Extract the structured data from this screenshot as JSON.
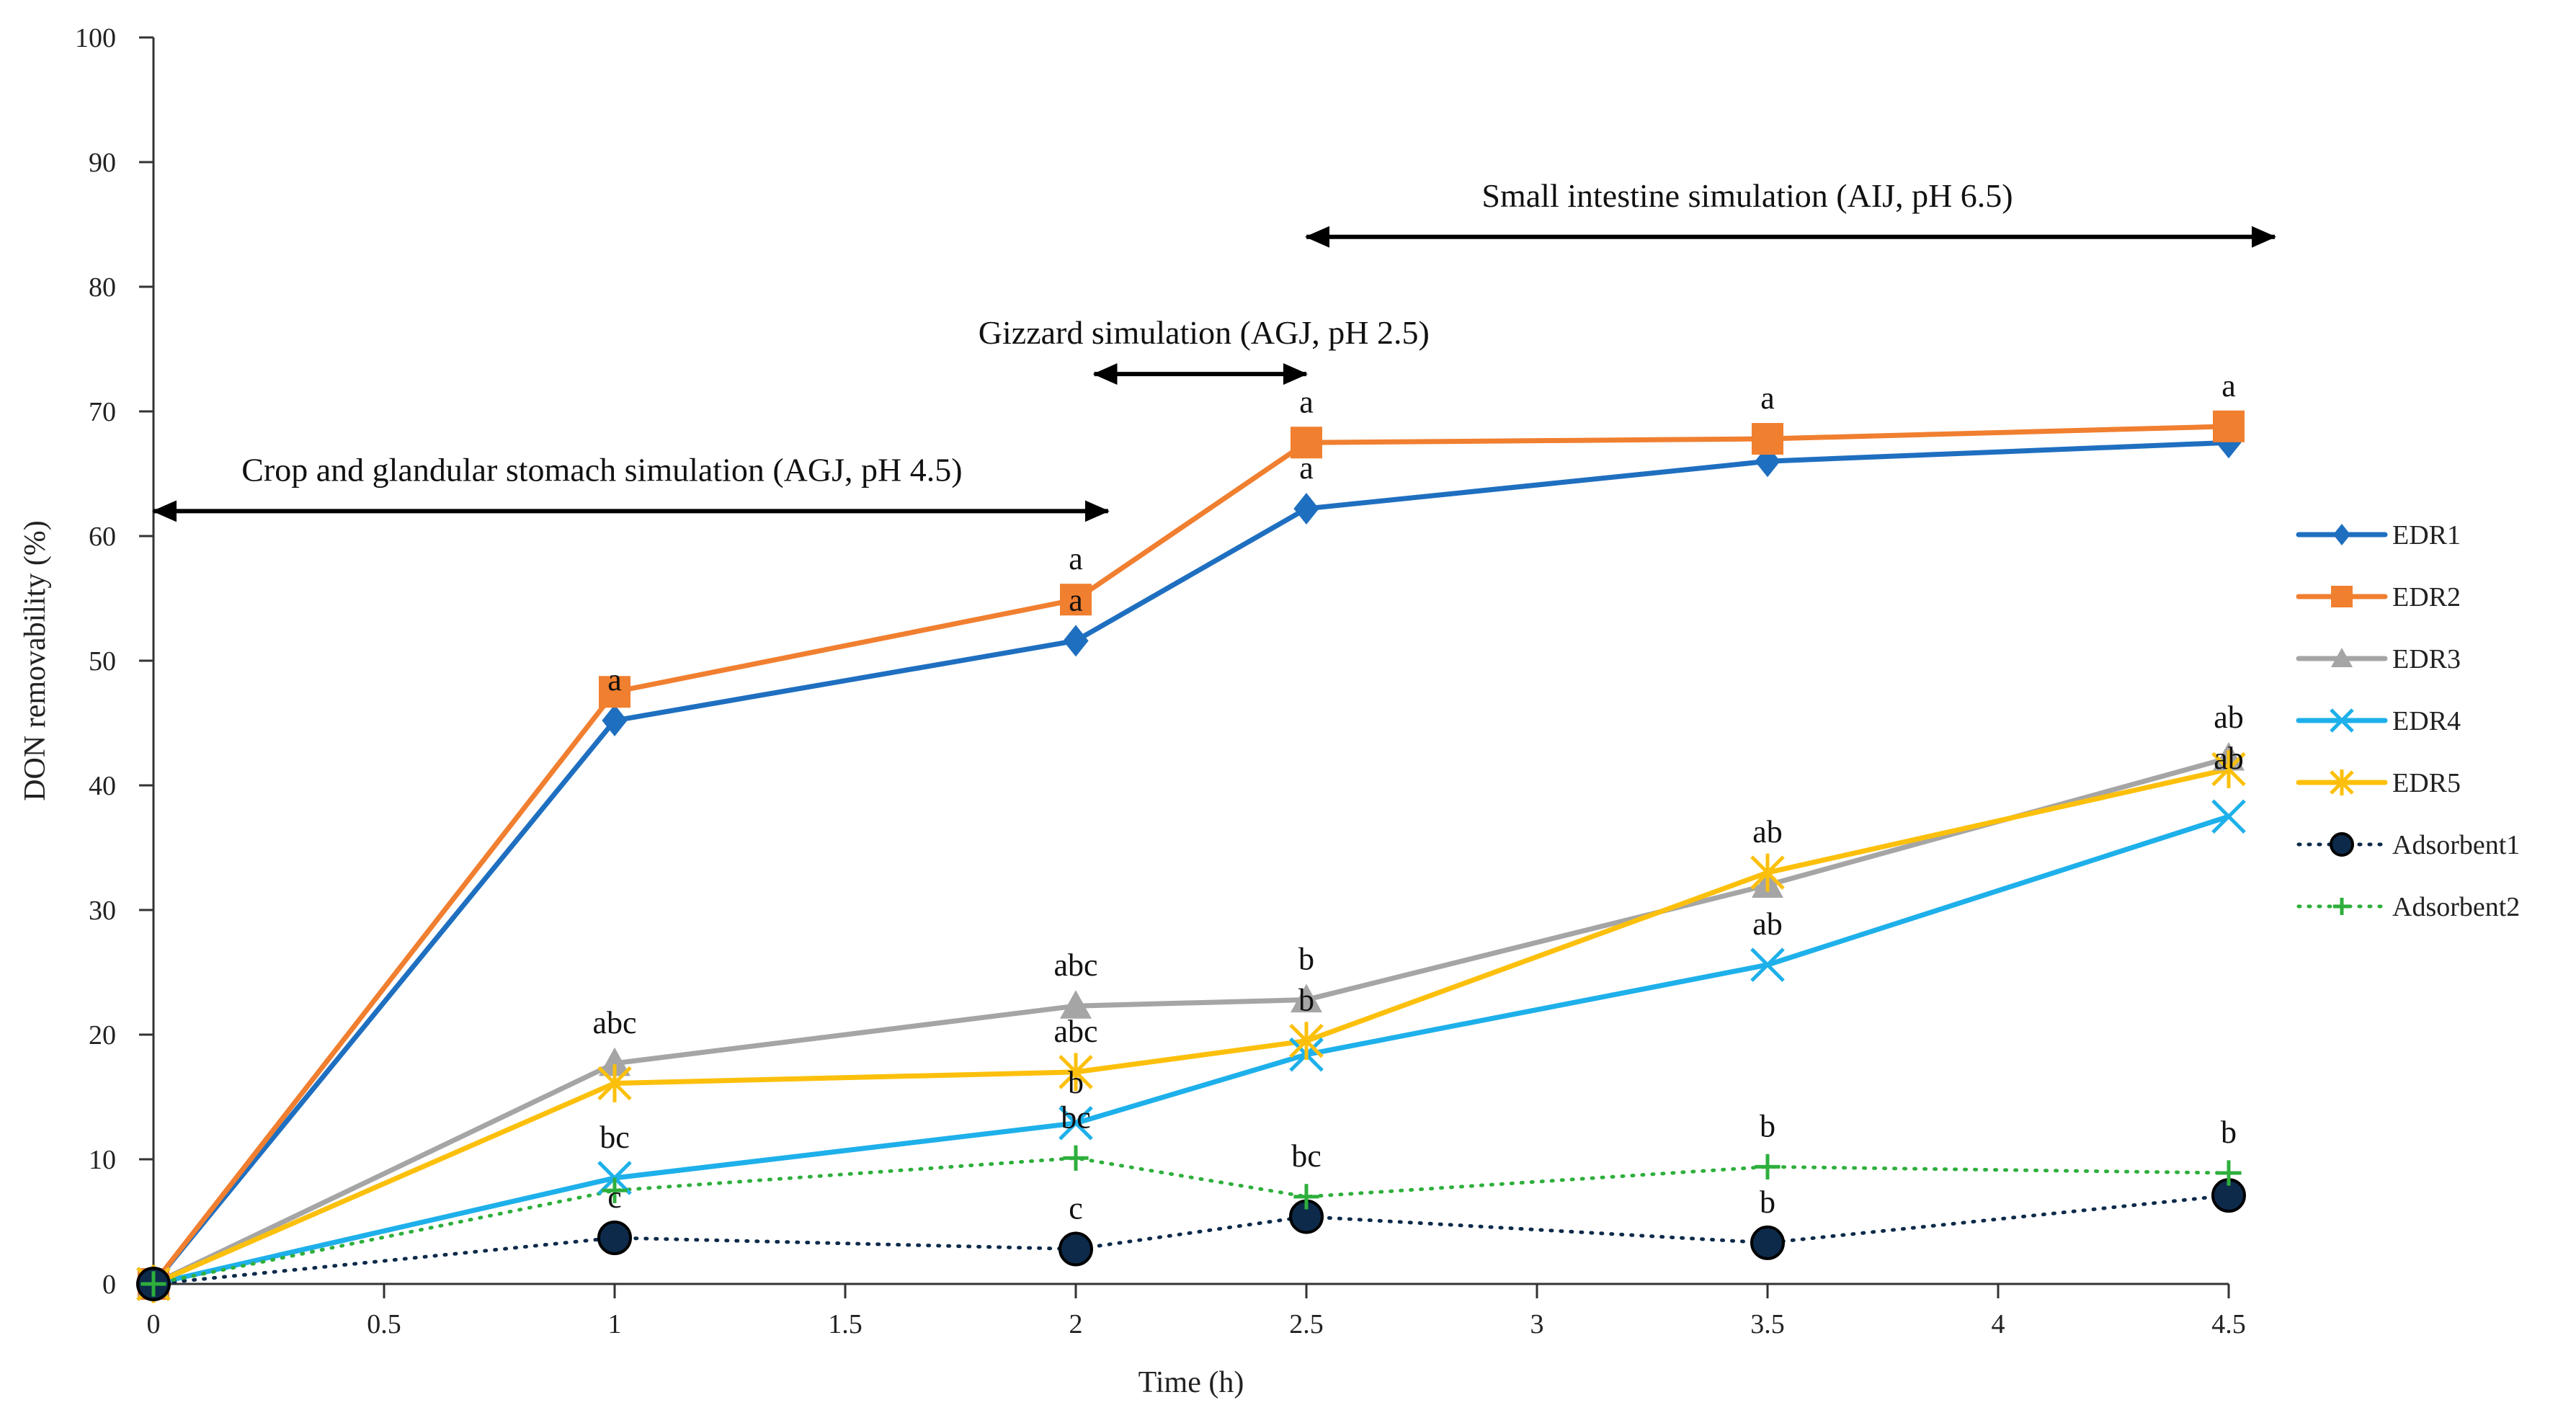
{
  "chart_data": {
    "type": "line",
    "title": "",
    "xlabel": "Time (h)",
    "ylabel": "DON removability (%)",
    "xlim": [
      0,
      4.5
    ],
    "ylim": [
      0,
      100
    ],
    "x_ticks": [
      "0",
      "0.5",
      "1",
      "1.5",
      "2",
      "2.5",
      "3",
      "3.5",
      "4",
      "4.5"
    ],
    "y_ticks": [
      "0",
      "10",
      "20",
      "30",
      "40",
      "50",
      "60",
      "70",
      "80",
      "90",
      "100"
    ],
    "grid": false,
    "legend_position": "right",
    "x": [
      0,
      1,
      2,
      2.5,
      3.5,
      4.5
    ],
    "series": [
      {
        "name": "EDR1",
        "color": "#1f6fc0",
        "marker": "diamond",
        "style": "solid",
        "values": [
          0,
          45.2,
          51.6,
          62.2,
          66,
          67.5
        ]
      },
      {
        "name": "EDR2",
        "color": "#f07f30",
        "marker": "square",
        "style": "solid",
        "values": [
          0,
          47.5,
          54.9,
          67.5,
          67.8,
          68.8
        ]
      },
      {
        "name": "EDR3",
        "color": "#a5a5a5",
        "marker": "triangle",
        "style": "solid",
        "values": [
          0,
          17.7,
          22.3,
          22.8,
          32,
          42.2
        ]
      },
      {
        "name": "EDR4",
        "color": "#1eb0ea",
        "marker": "x",
        "style": "solid",
        "values": [
          0,
          8.5,
          12.9,
          18.4,
          25.6,
          37.5
        ]
      },
      {
        "name": "EDR5",
        "color": "#fcc00c",
        "marker": "star",
        "style": "solid",
        "values": [
          0,
          16.1,
          17,
          19.5,
          33,
          41.3
        ]
      },
      {
        "name": "Adsorbent1",
        "color": "#0d2a4a",
        "marker": "circle",
        "style": "dotted",
        "values": [
          0,
          3.7,
          2.8,
          5.4,
          3.3,
          7.1
        ]
      },
      {
        "name": "Adsorbent2",
        "color": "#2eaf3c",
        "marker": "plus",
        "style": "dotted",
        "values": [
          0,
          7.5,
          10.1,
          7,
          9.4,
          8.9
        ]
      }
    ],
    "sig_labels": [
      {
        "x": 1,
        "y": 45.2,
        "text": "a"
      },
      {
        "x": 2,
        "y": 54.9,
        "text": "a"
      },
      {
        "x": 2,
        "y": 51.6,
        "text": "a"
      },
      {
        "x": 2.5,
        "y": 67.5,
        "text": "a"
      },
      {
        "x": 2.5,
        "y": 62.2,
        "text": "a"
      },
      {
        "x": 3.5,
        "y": 67.8,
        "text": "a"
      },
      {
        "x": 4.5,
        "y": 68.8,
        "text": "a"
      },
      {
        "x": 1,
        "y": 17.7,
        "text": "abc"
      },
      {
        "x": 2,
        "y": 22.3,
        "text": "abc"
      },
      {
        "x": 2,
        "y": 17,
        "text": "abc"
      },
      {
        "x": 2.5,
        "y": 22.8,
        "text": "b"
      },
      {
        "x": 2.5,
        "y": 19.5,
        "text": "b"
      },
      {
        "x": 3.5,
        "y": 33,
        "text": "ab"
      },
      {
        "x": 3.5,
        "y": 25.6,
        "text": "ab"
      },
      {
        "x": 4.5,
        "y": 42.2,
        "text": "ab"
      },
      {
        "x": 4.5,
        "y": 38.9,
        "text": "ab"
      },
      {
        "x": 1,
        "y": 8.5,
        "text": "bc"
      },
      {
        "x": 2,
        "y": 12.9,
        "text": "b"
      },
      {
        "x": 2,
        "y": 10.1,
        "text": "bc"
      },
      {
        "x": 2.5,
        "y": 7,
        "text": "bc"
      },
      {
        "x": 3.5,
        "y": 9.4,
        "text": "b"
      },
      {
        "x": 4.5,
        "y": 8.9,
        "text": "b"
      },
      {
        "x": 1,
        "y": 3.7,
        "text": "c"
      },
      {
        "x": 2,
        "y": 2.8,
        "text": "c"
      },
      {
        "x": 3.5,
        "y": 3.3,
        "text": "b"
      }
    ],
    "phases": [
      {
        "label": "Crop and glandular stomach simulation (AGJ, pH 4.5)",
        "x_start": 0,
        "x_end": 2.07,
        "y": 62
      },
      {
        "label": "Gizzard simulation (AGJ, pH 2.5)",
        "x_start": 2.04,
        "x_end": 2.5,
        "y": 73
      },
      {
        "label": "Small intestine simulation (AIJ, pH 6.5)",
        "x_start": 2.5,
        "x_end": 4.6,
        "y": 84
      }
    ]
  }
}
